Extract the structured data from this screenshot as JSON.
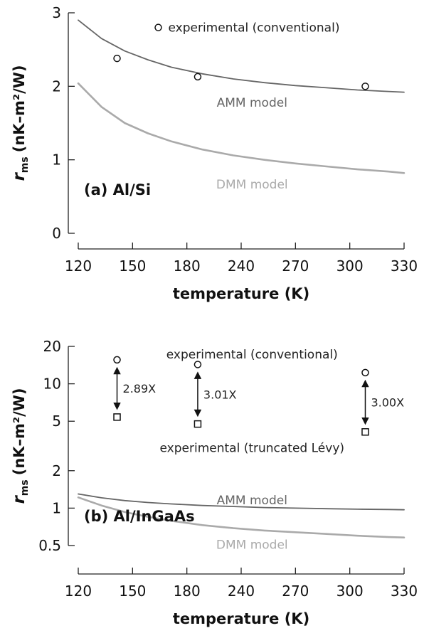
{
  "chart_data": [
    {
      "type": "line",
      "panel_label": "(a) Al/Si",
      "xlabel": "temperature (K)",
      "ylabel": {
        "symbol": "r",
        "subscript": "ms",
        "units": "(nK–m²/W)"
      },
      "xlim": [
        120,
        330
      ],
      "ylim": [
        0,
        3
      ],
      "y_scale": "linear",
      "x_ticks": [
        "120",
        "150",
        "180",
        "240",
        "270",
        "300",
        "330"
      ],
      "y_ticks": [
        {
          "value": 0,
          "label": "0"
        },
        {
          "value": 1,
          "label": "1"
        },
        {
          "value": 2,
          "label": "2"
        },
        {
          "value": 3,
          "label": "3"
        }
      ],
      "series": [
        {
          "name": "AMM model",
          "kind": "line",
          "color": "#666666",
          "x": [
            120,
            135,
            150,
            165,
            180,
            200,
            220,
            240,
            260,
            280,
            300,
            320,
            330
          ],
          "y": [
            2.9,
            2.65,
            2.48,
            2.36,
            2.26,
            2.17,
            2.1,
            2.05,
            2.01,
            1.98,
            1.95,
            1.93,
            1.92
          ]
        },
        {
          "name": "DMM model",
          "kind": "line",
          "color": "#aaaaaa",
          "x": [
            120,
            135,
            150,
            165,
            180,
            200,
            220,
            240,
            260,
            280,
            300,
            320,
            330
          ],
          "y": [
            2.04,
            1.72,
            1.5,
            1.36,
            1.25,
            1.14,
            1.06,
            1.0,
            0.95,
            0.91,
            0.87,
            0.84,
            0.82
          ]
        },
        {
          "name": "experimental (conventional)",
          "kind": "scatter",
          "marker": "circle",
          "color": "#111111",
          "x": [
            145,
            197,
            305
          ],
          "y": [
            2.38,
            2.13,
            2.0
          ]
        }
      ],
      "annotations": [
        {
          "text": "experimental (conventional)",
          "x": 178,
          "y": 2.8,
          "color": "#222222",
          "anchor": "start",
          "marker": "circle"
        },
        {
          "text": "AMM model",
          "x": 232,
          "y": 1.78,
          "color": "#666666",
          "anchor": "middle"
        },
        {
          "text": "DMM model",
          "x": 232,
          "y": 0.67,
          "color": "#aaaaaa",
          "anchor": "middle"
        }
      ]
    },
    {
      "type": "line",
      "panel_label": "(b) Al/InGaAs",
      "xlabel": "temperature (K)",
      "ylabel": {
        "symbol": "r",
        "subscript": "ms",
        "units": "(nK–m²/W)"
      },
      "xlim": [
        120,
        330
      ],
      "ylim": [
        0.5,
        20
      ],
      "y_scale": "log",
      "x_ticks": [
        "120",
        "150",
        "180",
        "240",
        "270",
        "300",
        "330"
      ],
      "y_ticks": [
        {
          "value": 0.5,
          "label": "0.5"
        },
        {
          "value": 1,
          "label": "1"
        },
        {
          "value": 2,
          "label": "2"
        },
        {
          "value": 5,
          "label": "5"
        },
        {
          "value": 10,
          "label": "10"
        },
        {
          "value": 20,
          "label": "20"
        }
      ],
      "series": [
        {
          "name": "AMM model",
          "kind": "line",
          "color": "#666666",
          "x": [
            120,
            135,
            150,
            165,
            180,
            200,
            220,
            240,
            260,
            280,
            300,
            320,
            330
          ],
          "y": [
            1.3,
            1.21,
            1.15,
            1.11,
            1.08,
            1.05,
            1.03,
            1.01,
            1.0,
            0.99,
            0.98,
            0.975,
            0.97
          ]
        },
        {
          "name": "DMM model",
          "kind": "line",
          "color": "#aaaaaa",
          "x": [
            120,
            135,
            150,
            165,
            180,
            200,
            220,
            240,
            260,
            280,
            300,
            320,
            330
          ],
          "y": [
            1.22,
            1.05,
            0.93,
            0.85,
            0.79,
            0.73,
            0.69,
            0.66,
            0.64,
            0.62,
            0.6,
            0.585,
            0.58
          ]
        },
        {
          "name": "experimental (conventional)",
          "kind": "scatter",
          "marker": "circle",
          "color": "#111111",
          "x": [
            145,
            197,
            305
          ],
          "y": [
            15.6,
            14.3,
            12.3
          ]
        },
        {
          "name": "experimental (truncated Lévy)",
          "kind": "scatter",
          "marker": "square",
          "color": "#111111",
          "x": [
            145,
            197,
            305
          ],
          "y": [
            5.4,
            4.75,
            4.1
          ]
        }
      ],
      "ratios": [
        {
          "label": "2.89X",
          "x": 145
        },
        {
          "label": "3.01X",
          "x": 197
        },
        {
          "label": "3.00X",
          "x": 305
        }
      ],
      "annotations": [
        {
          "text": "experimental (conventional)",
          "x": 232,
          "y": 17.3,
          "color": "#222222",
          "anchor": "middle"
        },
        {
          "text": "experimental (truncated Lévy)",
          "x": 232,
          "y": 3.05,
          "color": "#222222",
          "anchor": "middle"
        },
        {
          "text": "AMM model",
          "x": 232,
          "y": 1.16,
          "color": "#666666",
          "anchor": "middle"
        },
        {
          "text": "DMM model",
          "x": 232,
          "y": 0.51,
          "color": "#aaaaaa",
          "anchor": "middle"
        }
      ]
    }
  ]
}
